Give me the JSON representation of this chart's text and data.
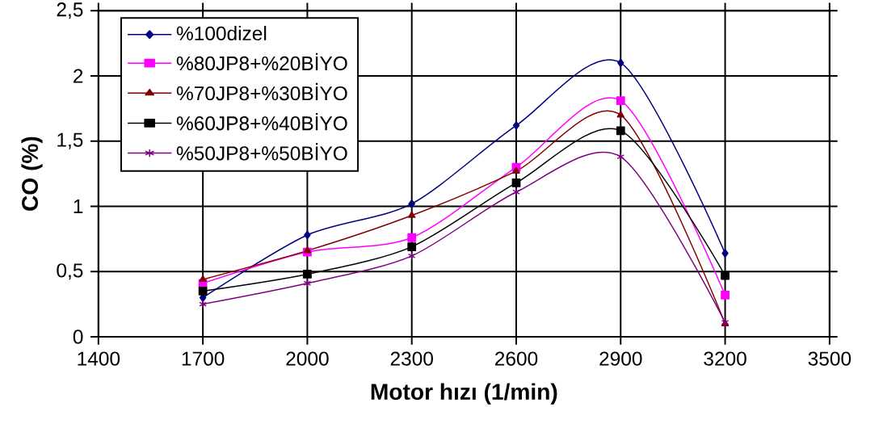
{
  "chart_data": {
    "type": "line",
    "xlabel": "Motor hızı (1/min)",
    "ylabel": "CO (%)",
    "x": [
      1700,
      2000,
      2300,
      2600,
      2900,
      3200
    ],
    "xlim": [
      1400,
      3500
    ],
    "xticks": [
      1400,
      1700,
      2000,
      2300,
      2600,
      2900,
      3200,
      3500
    ],
    "ylim": [
      0,
      2.5
    ],
    "yticks": [
      0,
      {
        "value": 0.5,
        "label": "0,5"
      },
      1,
      {
        "value": 1.5,
        "label": "1,5"
      },
      2,
      {
        "value": 2.5,
        "label": "2,5"
      }
    ],
    "grid": true,
    "legend": "top left",
    "line_style": "solid",
    "series": [
      {
        "name": "%100dizel",
        "color": "#000080",
        "marker": "diamond",
        "values": [
          0.3,
          0.78,
          1.02,
          1.62,
          2.1,
          0.64
        ]
      },
      {
        "name": "%80JP8+%20BİYO",
        "color": "#ff00ff",
        "marker": "square",
        "values": [
          0.41,
          0.65,
          0.76,
          1.3,
          1.81,
          0.32
        ]
      },
      {
        "name": "%70JP8+%30BİYO",
        "color": "#800000",
        "marker": "triangle",
        "values": [
          0.44,
          0.66,
          0.93,
          1.27,
          1.7,
          0.1
        ]
      },
      {
        "name": "%60JP8+%40BİYO",
        "color": "#000000",
        "marker": "square",
        "values": [
          0.35,
          0.48,
          0.69,
          1.18,
          1.58,
          0.47
        ]
      },
      {
        "name": "%50JP8+%50BİYO",
        "color": "#800080",
        "marker": "cross",
        "values": [
          0.25,
          0.41,
          0.62,
          1.11,
          1.38,
          0.11
        ]
      }
    ]
  }
}
